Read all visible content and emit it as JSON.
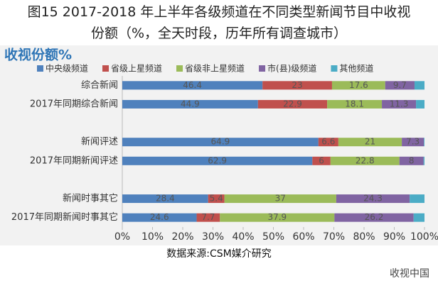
{
  "chart_data": {
    "type": "stacked-barh",
    "title": "图15 2017-2018 年上半年各级频道在不同类型新闻节目中收视份额（%，全天时段，历年所有调查城市）",
    "subtitle": "收视份额%",
    "source": "数据来源:CSM媒介研究",
    "watermark": "收视中国",
    "categories": [
      "综合新闻",
      "2017年同期综合新闻",
      null,
      "新闻评述",
      "2017年同期新闻评述",
      null,
      "新闻时事其它",
      "2017年同期新闻时事其它"
    ],
    "series": [
      {
        "name": "中央级频道",
        "color": "#4f81bd",
        "show_labels": true,
        "values": [
          46.4,
          44.9,
          null,
          64.9,
          62.9,
          null,
          28.4,
          24.6
        ]
      },
      {
        "name": "省级上星频道",
        "color": "#c0504d",
        "show_labels": true,
        "values": [
          23.0,
          22.9,
          null,
          6.6,
          6.0,
          null,
          5.4,
          7.7
        ]
      },
      {
        "name": "省级非上星频道",
        "color": "#9bbb59",
        "show_labels": true,
        "values": [
          17.6,
          18.1,
          null,
          21.0,
          22.8,
          null,
          37.0,
          37.9
        ]
      },
      {
        "name": "市(县)级频道",
        "color": "#8064a2",
        "show_labels": true,
        "values": [
          9.7,
          11.3,
          null,
          7.3,
          8.0,
          null,
          24.3,
          26.2
        ]
      },
      {
        "name": "其他频道",
        "color": "#4bacc6",
        "show_labels": false,
        "values": [
          3.3,
          2.8,
          null,
          0.2,
          0.3,
          null,
          4.9,
          3.6
        ]
      }
    ],
    "xlim": [
      0,
      100
    ],
    "xticks": [
      {
        "value": 0,
        "label": "0%"
      },
      {
        "value": 10,
        "label": "10%"
      },
      {
        "value": 20,
        "label": "20%"
      },
      {
        "value": 30,
        "label": "30%"
      },
      {
        "value": 40,
        "label": "40%"
      },
      {
        "value": 50,
        "label": "50%"
      },
      {
        "value": 60,
        "label": "60%"
      },
      {
        "value": 70,
        "label": "70%"
      },
      {
        "value": 80,
        "label": "80%"
      },
      {
        "value": 90,
        "label": "90%"
      },
      {
        "value": 100,
        "label": "100%"
      }
    ],
    "legend": "top"
  }
}
